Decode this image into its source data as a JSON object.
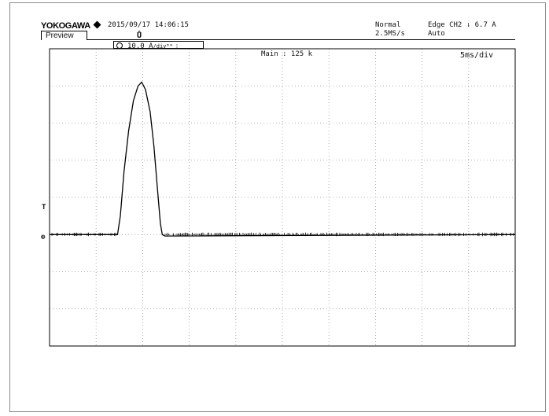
{
  "header": {
    "brand": "YOKOGAWA",
    "datetime": "2015/09/17 14:06:15",
    "tab": "Preview",
    "acq_mode": "Normal",
    "sample_rate": "2.5MS/s",
    "trigger_label": "Edge CH2",
    "trigger_symbol": "⇂",
    "trigger_level": "6.7 A",
    "trigger_mode": "Auto",
    "trigger_pos_glyph": "Ů",
    "ch_scale": "10.0 A",
    "ch_scale_unit": "/div",
    "ch_scale_extra": "ᴮᵂ ⁞",
    "main_record": "Main : 125 k",
    "timebase": "5ms/div"
  },
  "markers": {
    "trigger_level_marker": "T",
    "ground_marker": "⊕"
  },
  "chart_data": {
    "type": "line",
    "title": "",
    "xlabel": "",
    "ylabel": "",
    "x_unit": "ms",
    "y_unit": "A",
    "xlim": [
      0,
      50
    ],
    "ylim": [
      -30,
      50
    ],
    "x_divisions": 10,
    "y_divisions": 8,
    "grid": true,
    "trigger_level": 6.7,
    "series": [
      {
        "x": [
          0,
          7.3,
          7.6,
          8.0,
          8.5,
          9.0,
          9.5,
          9.9,
          10.3,
          10.8,
          11.2,
          11.6,
          11.9,
          12.1,
          12.4,
          50
        ],
        "values": [
          0,
          0,
          5,
          17,
          28,
          36,
          40,
          41,
          39,
          33,
          24,
          12,
          3,
          0,
          -0.4,
          0
        ]
      }
    ]
  }
}
